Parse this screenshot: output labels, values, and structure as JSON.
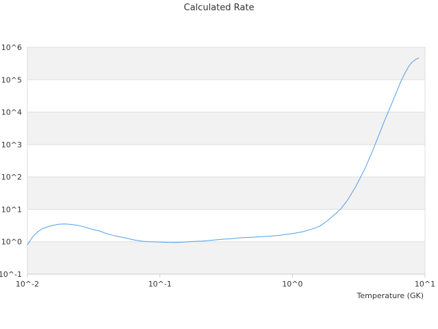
{
  "chart_data": {
    "type": "line",
    "title": "Calculated Rate",
    "xlabel": "Temperature (GK)",
    "ylabel": "",
    "xscale": "log",
    "yscale": "log",
    "xlim": [
      0.01,
      10
    ],
    "ylim": [
      0.1,
      1000000
    ],
    "x_tick_labels": [
      "10^-2",
      "10^-1",
      "10^0",
      "10^1"
    ],
    "y_tick_labels": [
      "10^-1",
      "10^0",
      "10^1",
      "10^2",
      "10^3",
      "10^4",
      "10^5",
      "10^6"
    ],
    "grid": "alternating horizontal bands",
    "legend": "none",
    "line_color": "#4f9de6",
    "band_color": "#f2f2f2",
    "series": [
      {
        "x": [
          0.01,
          0.011,
          0.012,
          0.013,
          0.015,
          0.017,
          0.019,
          0.021,
          0.024,
          0.027,
          0.031,
          0.035,
          0.04,
          0.045,
          0.055,
          0.065,
          0.075,
          0.085,
          0.1,
          0.115,
          0.13,
          0.15,
          0.18,
          0.21,
          0.25,
          0.3,
          0.35,
          0.4,
          0.5,
          0.6,
          0.7,
          0.8,
          1.0,
          1.2,
          1.4,
          1.6,
          1.8,
          2.0,
          2.3,
          2.6,
          3.0,
          3.5,
          4.0,
          4.5,
          5.0,
          5.5,
          6.0,
          6.5,
          7.0,
          7.5,
          8.0,
          8.5,
          9.0
        ],
        "y": [
          0.8,
          1.45,
          2.05,
          2.55,
          3.1,
          3.45,
          3.55,
          3.45,
          3.2,
          2.85,
          2.4,
          2.15,
          1.75,
          1.55,
          1.3,
          1.12,
          1.03,
          1.0,
          0.98,
          0.96,
          0.95,
          0.97,
          1.02,
          1.05,
          1.12,
          1.2,
          1.25,
          1.32,
          1.38,
          1.45,
          1.5,
          1.58,
          1.78,
          2.05,
          2.45,
          3.0,
          4.2,
          6.0,
          10.0,
          19.0,
          50.0,
          170.0,
          600.0,
          2000.0,
          6000.0,
          15000.0,
          35000.0,
          80000.0,
          150000.0,
          250000.0,
          350000.0,
          420000.0,
          470000.0
        ]
      }
    ]
  }
}
